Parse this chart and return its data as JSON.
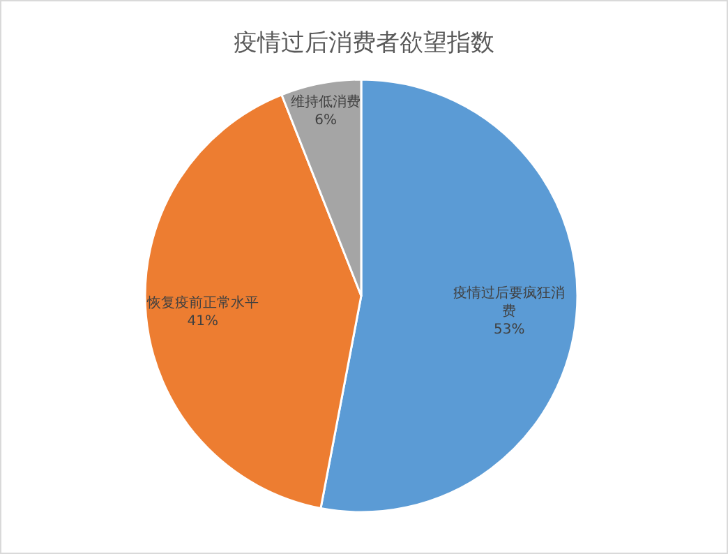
{
  "chart_data": {
    "type": "pie",
    "title": "疫情过后消费者欲望指数",
    "categories": [
      "疫情过后要疯狂消费",
      "恢复疫前正常水平",
      "维持低消费"
    ],
    "values": [
      53,
      41,
      6
    ],
    "colors": [
      "#5b9bd5",
      "#ed7d31",
      "#a5a5a5"
    ],
    "value_labels": [
      "53%",
      "41%",
      "6%"
    ]
  }
}
